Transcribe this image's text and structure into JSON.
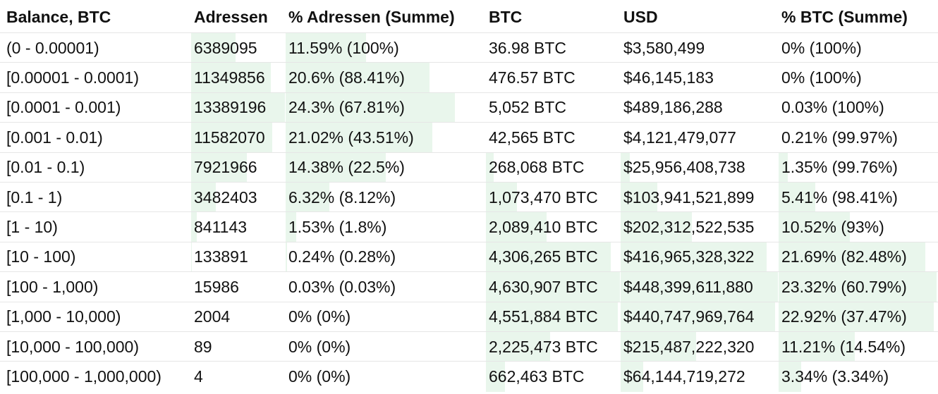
{
  "headers": [
    "Balance, BTC",
    "Adressen",
    "% Adressen (Summe)",
    "BTC",
    "USD",
    "% BTC (Summe)"
  ],
  "rows": [
    {
      "range": "(0 - 0.00001)",
      "addresses": "6389095",
      "pct_addresses": "11.59% (100%)",
      "btc": "36.98 BTC",
      "usd": "$3,580,499",
      "pct_btc": "0% (100%)",
      "addr_share": 0.477,
      "pct_addr_share": 0.477,
      "btc_share": 0.0,
      "usd_share": 0.0,
      "pct_btc_share": 0.0
    },
    {
      "range": "[0.00001 - 0.0001)",
      "addresses": "11349856",
      "pct_addresses": "20.6% (88.41%)",
      "btc": "476.57 BTC",
      "usd": "$46,145,183",
      "pct_btc": "0% (100%)",
      "addr_share": 0.848,
      "pct_addr_share": 0.848,
      "btc_share": 0.0,
      "usd_share": 0.0,
      "pct_btc_share": 0.0
    },
    {
      "range": "[0.0001 - 0.001)",
      "addresses": "13389196",
      "pct_addresses": "24.3% (67.81%)",
      "btc": "5,052 BTC",
      "usd": "$489,186,288",
      "pct_btc": "0.03% (100%)",
      "addr_share": 1.0,
      "pct_addr_share": 1.0,
      "btc_share": 0.0,
      "usd_share": 0.0,
      "pct_btc_share": 0.0
    },
    {
      "range": "[0.001 - 0.01)",
      "addresses": "11582070",
      "pct_addresses": "21.02% (43.51%)",
      "btc": "42,565 BTC",
      "usd": "$4,121,479,077",
      "pct_btc": "0.21% (99.97%)",
      "addr_share": 0.865,
      "pct_addr_share": 0.865,
      "btc_share": 0.0,
      "usd_share": 0.0,
      "pct_btc_share": 0.0
    },
    {
      "range": "[0.01 - 0.1)",
      "addresses": "7921966",
      "pct_addresses": "14.38% (22.5%)",
      "btc": "268,068 BTC",
      "usd": "$25,956,408,738",
      "pct_btc": "1.35% (99.76%)",
      "addr_share": 0.592,
      "pct_addr_share": 0.592,
      "btc_share": 0.058,
      "usd_share": 0.058,
      "pct_btc_share": 0.058
    },
    {
      "range": "[0.1 - 1)",
      "addresses": "3482403",
      "pct_addresses": "6.32% (8.12%)",
      "btc": "1,073,470 BTC",
      "usd": "$103,941,521,899",
      "pct_btc": "5.41% (98.41%)",
      "addr_share": 0.26,
      "pct_addr_share": 0.26,
      "btc_share": 0.232,
      "usd_share": 0.232,
      "pct_btc_share": 0.232
    },
    {
      "range": "[1 - 10)",
      "addresses": "841143",
      "pct_addresses": "1.53% (1.8%)",
      "btc": "2,089,410 BTC",
      "usd": "$202,312,522,535",
      "pct_btc": "10.52% (93%)",
      "addr_share": 0.063,
      "pct_addr_share": 0.063,
      "btc_share": 0.451,
      "usd_share": 0.451,
      "pct_btc_share": 0.451
    },
    {
      "range": "[10 - 100)",
      "addresses": "133891",
      "pct_addresses": "0.24% (0.28%)",
      "btc": "4,306,265 BTC",
      "usd": "$416,965,328,322",
      "pct_btc": "21.69% (82.48%)",
      "addr_share": 0.01,
      "pct_addr_share": 0.01,
      "btc_share": 0.93,
      "usd_share": 0.93,
      "pct_btc_share": 0.93
    },
    {
      "range": "[100 - 1,000)",
      "addresses": "15986",
      "pct_addresses": "0.03% (0.03%)",
      "btc": "4,630,907 BTC",
      "usd": "$448,399,611,880",
      "pct_btc": "23.32% (60.79%)",
      "addr_share": 0.0,
      "pct_addr_share": 0.0,
      "btc_share": 1.0,
      "usd_share": 1.0,
      "pct_btc_share": 1.0
    },
    {
      "range": "[1,000 - 10,000)",
      "addresses": "2004",
      "pct_addresses": "0% (0%)",
      "btc": "4,551,884 BTC",
      "usd": "$440,747,969,764",
      "pct_btc": "22.92% (37.47%)",
      "addr_share": 0.0,
      "pct_addr_share": 0.0,
      "btc_share": 0.983,
      "usd_share": 0.983,
      "pct_btc_share": 0.983
    },
    {
      "range": "[10,000 - 100,000)",
      "addresses": "89",
      "pct_addresses": "0% (0%)",
      "btc": "2,225,473 BTC",
      "usd": "$215,487,222,320",
      "pct_btc": "11.21% (14.54%)",
      "addr_share": 0.0,
      "pct_addr_share": 0.0,
      "btc_share": 0.48,
      "usd_share": 0.48,
      "pct_btc_share": 0.48
    },
    {
      "range": "[100,000 - 1,000,000)",
      "addresses": "4",
      "pct_addresses": "0% (0%)",
      "btc": "662,463 BTC",
      "usd": "$64,144,719,272",
      "pct_btc": "3.34% (3.34%)",
      "addr_share": 0.0,
      "pct_addr_share": 0.0,
      "btc_share": 0.143,
      "usd_share": 0.143,
      "pct_btc_share": 0.143
    }
  ],
  "colors": {
    "bar": "#e9f6ec"
  }
}
